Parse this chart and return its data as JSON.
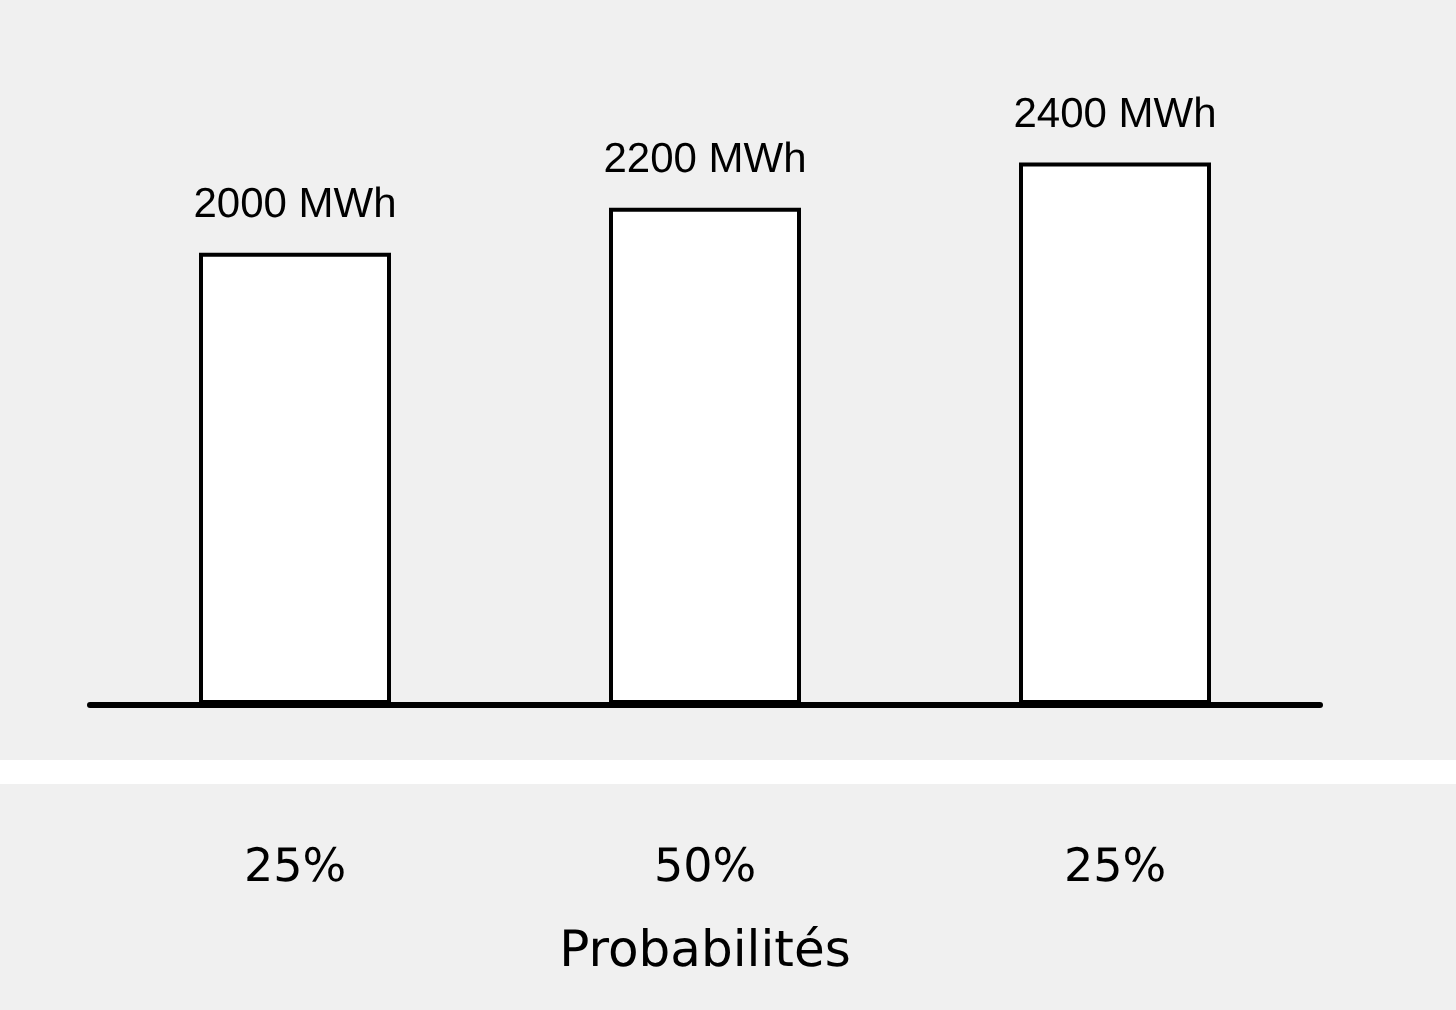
{
  "chart_data": {
    "type": "bar",
    "xlabel": "Probabilités",
    "categories": [
      "25%",
      "50%",
      "25%"
    ],
    "values": [
      2000,
      2200,
      2400
    ],
    "value_labels": [
      "2000 MWh",
      "2200 MWh",
      "2400 MWh"
    ],
    "color": "#ffffff"
  }
}
